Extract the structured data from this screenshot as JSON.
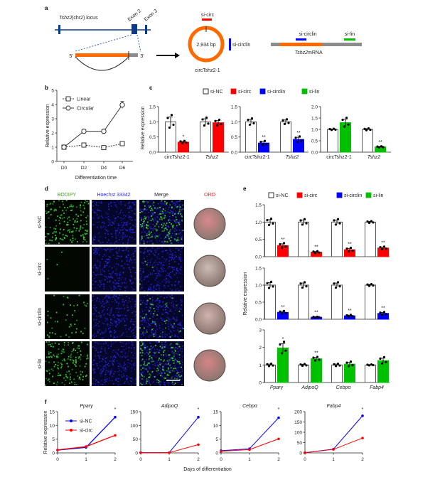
{
  "panel_labels": {
    "a": "a",
    "b": "b",
    "c": "c",
    "d": "d",
    "e": "e",
    "f": "f"
  },
  "panel_a": {
    "locus_label_gene": "Tshz2",
    "locus_label_rest": " (chr2) locus",
    "exon2": "Exon 2",
    "exon3": "Exon 3",
    "five_prime": "5'",
    "three_prime": "3'",
    "si_circ": "si-circ",
    "circle_size": "2,934 bp",
    "si_circlin_circle": "si-circlin",
    "circ_name": "circTshz2-1",
    "si_circlin_mrna": "si-circlin",
    "si_lin": "si-lin",
    "mrna_gene": "Tshz2",
    "mrna_rest": " mRNA"
  },
  "colors": {
    "si-NC": "#ffffff",
    "si-circ": "#ff0000",
    "si-circlin": "#0000ff",
    "si-lin": "#00c000",
    "orange": "#ff6a00",
    "grey": "#8c8c8c",
    "locus": "#0a3a8c"
  },
  "legend": [
    "si-NC",
    "si-circ",
    "si-circlin",
    "si-lin"
  ],
  "panel_d": {
    "columns": [
      "BODIPY",
      "Hoechst 33342",
      "Merge",
      "ORO"
    ],
    "rows": [
      "si-NC",
      "si-circ",
      "si-circlin",
      "si-lin"
    ],
    "bodipy_signal": [
      0.9,
      0.02,
      0.25,
      0.85
    ],
    "oro_color": [
      "#d88a8a",
      "#cbbab5",
      "#d1b3ac",
      "#d58585"
    ]
  },
  "shared_ylabel": "Relative expression",
  "f_xlabel": "Days of differentiation",
  "chart_data": [
    {
      "id": "b",
      "type": "line",
      "xlabel": "Differentiation time",
      "ylabel": "Relative expression",
      "categories": [
        "D0",
        "D2",
        "D4",
        "D6"
      ],
      "ylim": [
        0,
        5
      ],
      "yticks": [
        "0",
        "1",
        "2",
        "3",
        "4",
        "5"
      ],
      "legend_placement": "top-left",
      "series": [
        {
          "name": "Linear",
          "values": [
            1.0,
            1.15,
            0.97,
            1.25
          ],
          "errors": [
            0.03,
            0.08,
            0.08,
            0.08
          ],
          "style": "dashed",
          "marker": "square",
          "color": "#333333"
        },
        {
          "name": "Circular",
          "values": [
            1.0,
            2.12,
            2.12,
            3.97
          ],
          "errors": [
            0.03,
            0.15,
            0.15,
            0.25
          ],
          "style": "solid",
          "marker": "circle",
          "color": "#333333"
        }
      ]
    },
    {
      "id": "c1",
      "type": "bar",
      "ylabel": "Relative expression",
      "categories": [
        "circTshz2-1",
        "Tshz2"
      ],
      "italic": [
        false,
        true
      ],
      "ylim": [
        0,
        1.5
      ],
      "yticks": [
        "0.0",
        "0.5",
        "1.0",
        "1.5"
      ],
      "series": [
        {
          "name": "si-NC",
          "values": [
            1.0,
            1.0
          ],
          "errors": [
            0.16,
            0.1
          ],
          "stars": [
            "",
            ""
          ]
        },
        {
          "name": "si-circ",
          "values": [
            0.33,
            0.97
          ],
          "errors": [
            0.03,
            0.07
          ],
          "stars": [
            "*",
            ""
          ]
        }
      ]
    },
    {
      "id": "c2",
      "type": "bar",
      "categories": [
        "circTshz2-1",
        "Tshz2"
      ],
      "italic": [
        false,
        true
      ],
      "ylim": [
        0,
        1.5
      ],
      "yticks": [
        "0.0",
        "0.5",
        "1.0",
        "1.5"
      ],
      "series": [
        {
          "name": "si-NC",
          "values": [
            1.0,
            1.0
          ],
          "errors": [
            0.08,
            0.06
          ],
          "stars": [
            "",
            ""
          ]
        },
        {
          "name": "si-circlin",
          "values": [
            0.3,
            0.42
          ],
          "errors": [
            0.05,
            0.07
          ],
          "stars": [
            "**",
            "**"
          ]
        }
      ]
    },
    {
      "id": "c3",
      "type": "bar",
      "categories": [
        "circTshz2-1",
        "Tshz2"
      ],
      "italic": [
        false,
        true
      ],
      "ylim": [
        0,
        2.0
      ],
      "yticks": [
        "0.0",
        "0.5",
        "1.0",
        "1.5",
        "2.0"
      ],
      "series": [
        {
          "name": "si-NC",
          "values": [
            1.0,
            1.0
          ],
          "errors": [
            0.02,
            0.03
          ],
          "stars": [
            "",
            ""
          ]
        },
        {
          "name": "si-lin",
          "values": [
            1.3,
            0.23
          ],
          "errors": [
            0.15,
            0.02
          ],
          "stars": [
            "",
            "**"
          ]
        }
      ]
    },
    {
      "id": "e1",
      "type": "bar",
      "categories": [
        "Pparγ",
        "AdipoQ",
        "Cebpα",
        "Fabp4"
      ],
      "italic": [
        true,
        true,
        true,
        true
      ],
      "ylim": [
        0,
        1.5
      ],
      "yticks": [
        "0.0",
        "0.5",
        "1.0",
        "1.5"
      ],
      "show_xlabels": false,
      "series": [
        {
          "name": "si-NC",
          "values": [
            1.0,
            1.0,
            1.0,
            1.0
          ],
          "errors": [
            0.07,
            0.06,
            0.06,
            0.02
          ],
          "stars": [
            "",
            "",
            "",
            ""
          ]
        },
        {
          "name": "si-circ",
          "values": [
            0.32,
            0.13,
            0.2,
            0.25
          ],
          "errors": [
            0.05,
            0.02,
            0.04,
            0.03
          ],
          "stars": [
            "**",
            "**",
            "**",
            "**"
          ]
        }
      ]
    },
    {
      "id": "e2",
      "type": "bar",
      "categories": [
        "Pparγ",
        "AdipoQ",
        "Cebpα",
        "Fabp4"
      ],
      "italic": [
        true,
        true,
        true,
        true
      ],
      "ylim": [
        0,
        1.5
      ],
      "yticks": [
        "0.0",
        "0.5",
        "1.0",
        "1.5"
      ],
      "show_xlabels": false,
      "series": [
        {
          "name": "si-NC",
          "values": [
            1.0,
            1.0,
            1.0,
            1.0
          ],
          "errors": [
            0.07,
            0.06,
            0.06,
            0.02
          ],
          "stars": [
            "",
            "",
            "",
            ""
          ]
        },
        {
          "name": "si-circlin",
          "values": [
            0.2,
            0.06,
            0.1,
            0.17
          ],
          "errors": [
            0.03,
            0.01,
            0.02,
            0.03
          ],
          "stars": [
            "**",
            "**",
            "**",
            "**"
          ]
        }
      ]
    },
    {
      "id": "e3",
      "type": "bar",
      "categories": [
        "Pparγ",
        "AdipoQ",
        "Cebpα",
        "Fabp4"
      ],
      "italic": [
        true,
        true,
        true,
        true
      ],
      "ylim": [
        0,
        3
      ],
      "yticks": [
        "0",
        "1",
        "2",
        "3"
      ],
      "series": [
        {
          "name": "si-NC",
          "values": [
            1.0,
            1.0,
            1.0,
            1.0
          ],
          "errors": [
            0.05,
            0.04,
            0.05,
            0.02
          ],
          "stars": [
            "",
            "",
            "",
            ""
          ]
        },
        {
          "name": "si-lin",
          "values": [
            1.97,
            1.35,
            1.05,
            1.25
          ],
          "errors": [
            0.25,
            0.08,
            0.1,
            0.14
          ],
          "stars": [
            "*",
            "**",
            "",
            ""
          ]
        }
      ]
    },
    {
      "id": "f1",
      "type": "line",
      "title": "Pparγ",
      "x": [
        0,
        1,
        2
      ],
      "xticks": [
        "0",
        "1",
        "2"
      ],
      "ylim": [
        0,
        15
      ],
      "yticks": [
        "0",
        "5",
        "10",
        "15"
      ],
      "legend_placement": "top-left",
      "stars": [
        "",
        "",
        "*"
      ],
      "series": [
        {
          "name": "si-NC",
          "values": [
            1,
            2,
            13
          ],
          "color": "#0000ff"
        },
        {
          "name": "si-circ",
          "values": [
            1.1,
            2.3,
            6.4
          ],
          "color": "#ff0000"
        }
      ]
    },
    {
      "id": "f2",
      "type": "line",
      "title": "AdipoQ",
      "x": [
        0,
        1,
        2
      ],
      "xticks": [
        "0",
        "1",
        "2"
      ],
      "ylim": [
        0,
        150
      ],
      "yticks": [
        "0",
        "50",
        "100",
        "150"
      ],
      "stars": [
        "",
        "",
        "*"
      ],
      "series": [
        {
          "name": "si-NC",
          "values": [
            1,
            1,
            130
          ],
          "color": "#0000ff"
        },
        {
          "name": "si-circ",
          "values": [
            1,
            1,
            30
          ],
          "color": "#ff0000"
        }
      ]
    },
    {
      "id": "f3",
      "type": "line",
      "title": "Cebpα",
      "x": [
        0,
        1,
        2
      ],
      "xticks": [
        "0",
        "1",
        "2"
      ],
      "ylim": [
        0,
        15
      ],
      "yticks": [
        "0",
        "5",
        "10",
        "15"
      ],
      "stars": [
        "",
        "",
        "*"
      ],
      "series": [
        {
          "name": "si-NC",
          "values": [
            0.8,
            1.5,
            12.8
          ],
          "color": "#0000ff"
        },
        {
          "name": "si-circ",
          "values": [
            0.6,
            1.2,
            5.1
          ],
          "color": "#ff0000"
        }
      ]
    },
    {
      "id": "f4",
      "type": "line",
      "title": "Fabp4",
      "x": [
        0,
        1,
        2
      ],
      "xticks": [
        "0",
        "1",
        "2"
      ],
      "ylim": [
        0,
        200
      ],
      "yticks": [
        "0",
        "50",
        "100",
        "150",
        "200"
      ],
      "stars": [
        "",
        "",
        "*"
      ],
      "series": [
        {
          "name": "si-NC",
          "values": [
            1,
            18,
            180
          ],
          "color": "#0000ff"
        },
        {
          "name": "si-circ",
          "values": [
            1,
            17,
            72
          ],
          "color": "#ff0000"
        }
      ]
    }
  ]
}
